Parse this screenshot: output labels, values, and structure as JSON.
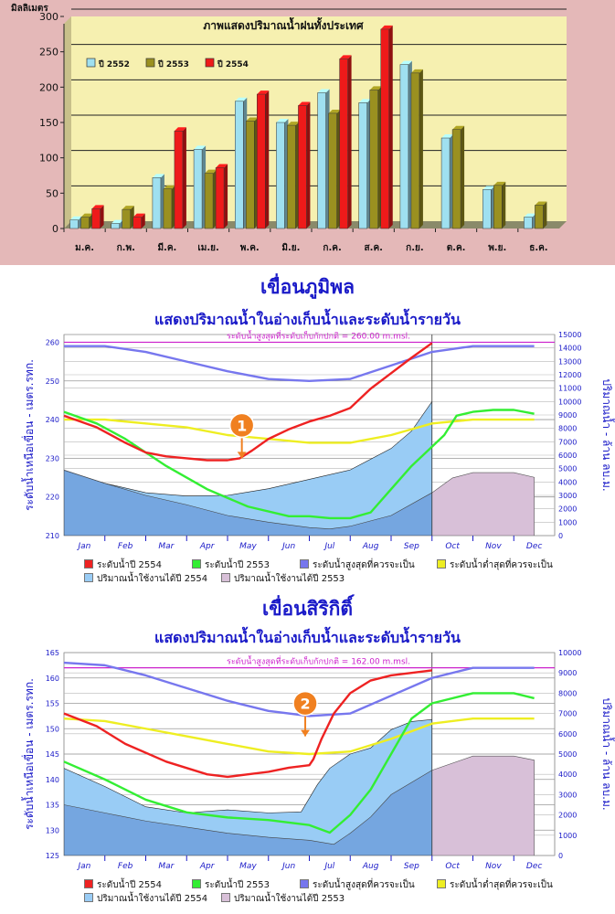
{
  "chart_data": [
    {
      "type": "bar",
      "title": "ภาพแสดงปริมาณน้ำฝนทั้งประเทศ",
      "ylabel": "มิลลิเมตร",
      "ylim": [
        0,
        300
      ],
      "yticks": [
        0,
        50,
        100,
        150,
        200,
        250,
        300
      ],
      "categories": [
        "ม.ค.",
        "ก.พ.",
        "มี.ค.",
        "เม.ย.",
        "พ.ค.",
        "มิ.ย.",
        "ก.ค.",
        "ส.ค.",
        "ก.ย.",
        "ต.ค.",
        "พ.ย.",
        "ธ.ค."
      ],
      "legend_position": "top-left",
      "series": [
        {
          "name": "ปี 2552",
          "color": "#9fe0f0",
          "values": [
            12,
            7,
            72,
            112,
            180,
            150,
            192,
            178,
            232,
            128,
            55,
            16
          ]
        },
        {
          "name": "ปี 2553",
          "color": "#9a9020",
          "values": [
            16,
            27,
            56,
            78,
            152,
            146,
            163,
            196,
            220,
            140,
            61,
            33
          ]
        },
        {
          "name": "ปี 2554",
          "color": "#ee1a1a",
          "values": [
            28,
            16,
            138,
            86,
            190,
            174,
            240,
            282,
            null,
            null,
            null,
            null
          ]
        }
      ]
    },
    {
      "type": "line",
      "title": "เขื่อนภูมิพล",
      "subtitle": "แสดงปริมาณน้ำในอ่างเก็บน้ำและระดับน้ำรายวัน",
      "ylabel": "ระดับน้ำเหนือเขื่อน - เมตร.รทก.",
      "ylabel_right": "ปริมาณน้ำ - ล้าน ลบ.ม.",
      "ylim": [
        210,
        262
      ],
      "yticks": [
        210,
        220,
        230,
        240,
        250,
        260
      ],
      "ylim_right": [
        0,
        15000
      ],
      "yticks_right": [
        0,
        1000,
        2000,
        3000,
        4000,
        5000,
        6000,
        7000,
        8000,
        9000,
        10000,
        11000,
        12000,
        13000,
        14000,
        15000
      ],
      "months": [
        "Jan",
        "Feb",
        "Mar",
        "Apr",
        "May",
        "Jun",
        "Jul",
        "Aug",
        "Sep",
        "Oct",
        "Nov",
        "Dec"
      ],
      "annotation": "ระดับน้ำสูงสุดที่ระดับเก็บกักปกติ = 260.00 m.msl.",
      "marker": "1",
      "marker_x": 4.35,
      "marker_y": 230,
      "today": 9.0,
      "series": [
        {
          "name": "ระดับน้ำปี 2554",
          "color": "#ee2222",
          "x": [
            0,
            0.8,
            1.5,
            2.0,
            2.5,
            3.0,
            3.5,
            4.0,
            4.3,
            4.6,
            5.0,
            5.5,
            6.0,
            6.5,
            7.0,
            7.5,
            8.0,
            8.5,
            9.0
          ],
          "y": [
            241,
            238,
            234,
            231.5,
            230.5,
            230,
            229.5,
            229.5,
            230,
            232,
            235,
            237.5,
            239.5,
            241,
            243,
            248,
            252,
            256,
            259.8
          ]
        },
        {
          "name": "ระดับน้ำปี 2553",
          "color": "#33ee33",
          "x": [
            0,
            0.8,
            1.5,
            2.5,
            3.5,
            4.5,
            5.5,
            6.0,
            6.5,
            7.0,
            7.5,
            8.0,
            8.5,
            9.0,
            9.3,
            9.6,
            10.0,
            10.5,
            11.0,
            11.5
          ],
          "y": [
            242,
            239,
            235,
            228,
            222,
            217.5,
            215,
            215,
            214.5,
            214.5,
            216,
            222,
            228,
            233,
            236,
            241,
            242,
            242.5,
            242.5,
            241.5
          ]
        },
        {
          "name": "ระดับน้ำสูงสุดที่ควรจะเป็น",
          "color": "#7777ee",
          "x": [
            0,
            1,
            2,
            3,
            4,
            5,
            6,
            7,
            8,
            9,
            10,
            11,
            11.5
          ],
          "y": [
            259,
            259,
            257.5,
            255,
            252.5,
            250.5,
            250,
            250.5,
            254,
            257.5,
            259,
            259,
            259
          ]
        },
        {
          "name": "ระดับน้ำต่ำสุดที่ควรจะเป็น",
          "color": "#eeee22",
          "x": [
            0,
            1,
            2,
            3,
            4,
            5,
            6,
            7,
            8,
            9,
            10,
            11,
            11.5
          ],
          "y": [
            240,
            240,
            239,
            238,
            236,
            235,
            234,
            234,
            236,
            239,
            240,
            240,
            240
          ]
        },
        {
          "name": "ปริมาณน้ำใช้งานได้ปี 2554",
          "color": "#99ccf5",
          "x": [
            0,
            1,
            2,
            3,
            4,
            5,
            6,
            7,
            8,
            8.5,
            9.0
          ],
          "y": [
            4850,
            3900,
            3200,
            2950,
            3000,
            3500,
            4200,
            4900,
            6500,
            7800,
            10000
          ]
        },
        {
          "name": "ปริมาณน้ำใช้งานได้ปี 2553",
          "color": "#d8c0d8",
          "x": [
            0,
            1,
            2,
            3,
            4,
            5,
            6,
            6.5,
            7,
            8,
            9,
            9.5,
            10,
            11,
            11.5
          ],
          "y": [
            4900,
            3900,
            3000,
            2300,
            1500,
            1000,
            600,
            500,
            700,
            1500,
            3200,
            4300,
            4700,
            4700,
            4350
          ]
        }
      ],
      "legend": [
        {
          "label": "ระดับน้ำปี 2554",
          "color": "#ee2222"
        },
        {
          "label": "ระดับน้ำปี 2553",
          "color": "#33ee33"
        },
        {
          "label": "ระดับน้ำสูงสุดที่ควรจะเป็น",
          "color": "#7777ee"
        },
        {
          "label": "ระดับน้ำต่ำสุดที่ควรจะเป็น",
          "color": "#eeee22"
        },
        {
          "label": "ปริมาณน้ำใช้งานได้ปี 2554",
          "color": "#99ccf5"
        },
        {
          "label": "ปริมาณน้ำใช้งานได้ปี 2553",
          "color": "#d8c0d8"
        }
      ]
    },
    {
      "type": "line",
      "title": "เขื่อนสิริกิติ์",
      "subtitle": "แสดงปริมาณน้ำในอ่างเก็บน้ำและระดับน้ำรายวัน",
      "ylabel": "ระดับน้ำเหนือเขื่อน - เมตร.รทก.",
      "ylabel_right": "ปริมาณน้ำ - ล้าน ลบ.ม.",
      "ylim": [
        125,
        165
      ],
      "yticks": [
        125,
        130,
        135,
        140,
        145,
        150,
        155,
        160,
        165
      ],
      "ylim_right": [
        0,
        10000
      ],
      "yticks_right": [
        0,
        1000,
        2000,
        3000,
        4000,
        5000,
        6000,
        7000,
        8000,
        9000,
        10000
      ],
      "months": [
        "Jan",
        "Feb",
        "Mar",
        "Apr",
        "May",
        "Jun",
        "Jul",
        "Aug",
        "Sep",
        "Oct",
        "Nov",
        "Dec"
      ],
      "annotation": "ระดับน้ำสูงสุดที่ระดับเก็บกักปกติ = 162.00 m.msl.",
      "marker": "2",
      "marker_x": 5.9,
      "marker_y": 148.5,
      "today": 9.0,
      "series": [
        {
          "name": "ระดับน้ำปี 2554",
          "color": "#ee2222",
          "x": [
            0,
            0.8,
            1.5,
            2.5,
            3.5,
            4.0,
            4.5,
            5.0,
            5.5,
            6.0,
            6.1,
            6.3,
            6.6,
            7.0,
            7.5,
            8.0,
            8.5,
            9.0
          ],
          "y": [
            153,
            150.5,
            147,
            143.5,
            141,
            140.5,
            141,
            141.5,
            142.3,
            142.8,
            144,
            148,
            153,
            157,
            159.5,
            160.5,
            161,
            161.5
          ]
        },
        {
          "name": "ระดับน้ำปี 2553",
          "color": "#33ee33",
          "x": [
            0,
            1,
            2,
            3,
            4,
            5,
            6,
            6.5,
            7,
            7.5,
            8,
            8.5,
            9,
            10,
            11,
            11.5
          ],
          "y": [
            143.5,
            140,
            136,
            133.5,
            132.5,
            132,
            131,
            129.5,
            133,
            138,
            145,
            152,
            155,
            157,
            157,
            156
          ]
        },
        {
          "name": "ระดับน้ำสูงสุดที่ควรจะเป็น",
          "color": "#7777ee",
          "x": [
            0,
            1,
            2,
            3,
            4,
            5,
            6,
            7,
            8,
            9,
            10,
            11,
            11.5
          ],
          "y": [
            163,
            162.5,
            160.5,
            158,
            155.5,
            153.5,
            152.5,
            153,
            156.5,
            160,
            162,
            162,
            162
          ]
        },
        {
          "name": "ระดับน้ำต่ำสุดที่ควรจะเป็น",
          "color": "#eeee22",
          "x": [
            0,
            1,
            2,
            3,
            4,
            5,
            6,
            7,
            8,
            9,
            10,
            11,
            11.5
          ],
          "y": [
            152,
            151.5,
            150,
            148.5,
            147,
            145.5,
            145,
            145.5,
            148,
            151,
            152,
            152,
            152
          ]
        },
        {
          "name": "ปริมาณน้ำใช้งานได้ปี 2554",
          "color": "#99ccf5",
          "x": [
            0,
            1,
            2,
            3,
            4,
            5,
            5.8,
            6.2,
            6.5,
            7.0,
            7.5,
            8.0,
            8.5,
            9.0
          ],
          "y": [
            4300,
            3400,
            2400,
            2100,
            2250,
            2100,
            2150,
            3500,
            4300,
            5000,
            5300,
            6200,
            6600,
            6700
          ]
        },
        {
          "name": "ปริมาณน้ำใช้งานได้ปี 2553",
          "color": "#d8c0d8",
          "x": [
            0,
            1,
            2,
            3,
            4,
            5,
            6,
            6.6,
            7,
            7.5,
            8,
            9,
            10,
            11,
            11.5
          ],
          "y": [
            2500,
            2100,
            1700,
            1400,
            1100,
            900,
            750,
            550,
            1100,
            1900,
            3000,
            4200,
            4900,
            4900,
            4700
          ]
        }
      ],
      "legend": [
        {
          "label": "ระดับน้ำปี 2554",
          "color": "#ee2222"
        },
        {
          "label": "ระดับน้ำปี 2553",
          "color": "#33ee33"
        },
        {
          "label": "ระดับน้ำสูงสุดที่ควรจะเป็น",
          "color": "#7777ee"
        },
        {
          "label": "ระดับน้ำต่ำสุดที่ควรจะเป็น",
          "color": "#eeee22"
        },
        {
          "label": "ปริมาณน้ำใช้งานได้ปี 2554",
          "color": "#99ccf5"
        },
        {
          "label": "ปริมาณน้ำใช้งานได้ปี 2553",
          "color": "#d8c0d8"
        }
      ]
    }
  ]
}
